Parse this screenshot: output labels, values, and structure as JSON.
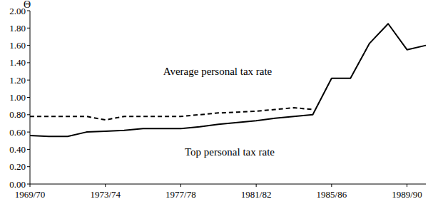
{
  "chart_data": {
    "type": "line",
    "y_label": "Θ",
    "categories": [
      "1969/70",
      null,
      null,
      null,
      "1973/74",
      null,
      null,
      null,
      "1977/78",
      null,
      null,
      null,
      "1981/82",
      null,
      null,
      null,
      "1985/86",
      null,
      null,
      null,
      "1989/90",
      null
    ],
    "series": [
      {
        "name": "Average personal tax rate",
        "color": "#000000",
        "line_style": "dashed",
        "values": [
          0.78,
          0.78,
          0.78,
          0.78,
          0.74,
          0.78,
          0.78,
          0.78,
          0.78,
          0.8,
          0.82,
          0.83,
          0.84,
          0.86,
          0.88,
          0.86,
          null,
          null,
          null,
          null,
          null,
          null
        ]
      },
      {
        "name": "Top personal tax rate",
        "color": "#000000",
        "line_style": "solid",
        "values": [
          0.56,
          0.55,
          0.55,
          0.6,
          0.61,
          0.62,
          0.64,
          0.64,
          0.64,
          0.66,
          0.69,
          0.71,
          0.73,
          0.76,
          0.78,
          0.8,
          1.22,
          1.22,
          1.62,
          1.85,
          1.55,
          1.6
        ]
      }
    ],
    "ylim": [
      0,
      2
    ],
    "yticks": [
      {
        "value": 0,
        "label": "0.00"
      },
      {
        "value": 0.2,
        "label": "0.20"
      },
      {
        "value": 0.4,
        "label": "0.40"
      },
      {
        "value": 0.6,
        "label": "0.60"
      },
      {
        "value": 0.8,
        "label": "0.80"
      },
      {
        "value": 1,
        "label": "1.00"
      },
      {
        "value": 1.2,
        "label": "1.20"
      },
      {
        "value": 1.4,
        "label": "1.40"
      },
      {
        "value": 1.6,
        "label": "1.60"
      },
      {
        "value": 1.8,
        "label": "1.80"
      },
      {
        "value": 2,
        "label": "2.00"
      }
    ],
    "grid": false
  }
}
